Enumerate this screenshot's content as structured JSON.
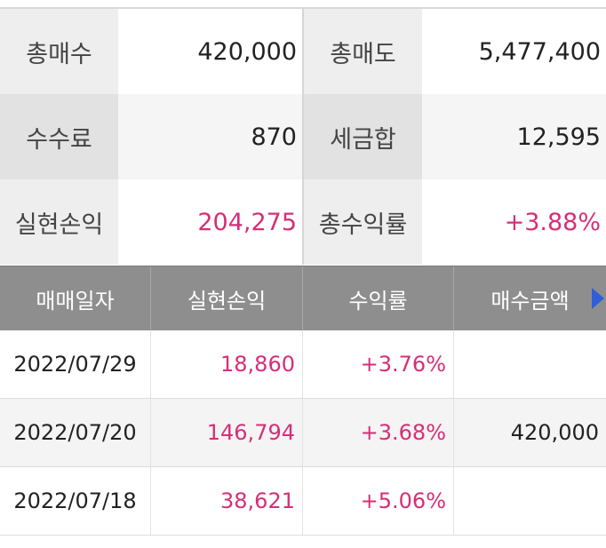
{
  "summary": {
    "rows": [
      {
        "l1": "총매수",
        "v1": "420,000",
        "l2": "총매도",
        "v2": "5,477,400"
      },
      {
        "l1": "수수료",
        "v1": "870",
        "l2": "세금합",
        "v2": "12,595"
      },
      {
        "l1": "실현손익",
        "v1": "204,275",
        "l2": "총수익률",
        "v2": "+3.88%"
      }
    ]
  },
  "table": {
    "headers": [
      "매매일자",
      "실현손익",
      "수익률",
      "매수금액"
    ],
    "rows": [
      {
        "date": "2022/07/29",
        "profit": "18,860",
        "rate": "+3.76%",
        "buy": ""
      },
      {
        "date": "2022/07/20",
        "profit": "146,794",
        "rate": "+3.68%",
        "buy": "420,000"
      },
      {
        "date": "2022/07/18",
        "profit": "38,621",
        "rate": "+5.06%",
        "buy": ""
      }
    ]
  },
  "colors": {
    "accent_pink": "#d62e78",
    "header_gray": "#8e8e8e",
    "arrow_blue": "#2f5fd8"
  },
  "icons": {
    "scroll_right": "triangle-right-icon"
  }
}
